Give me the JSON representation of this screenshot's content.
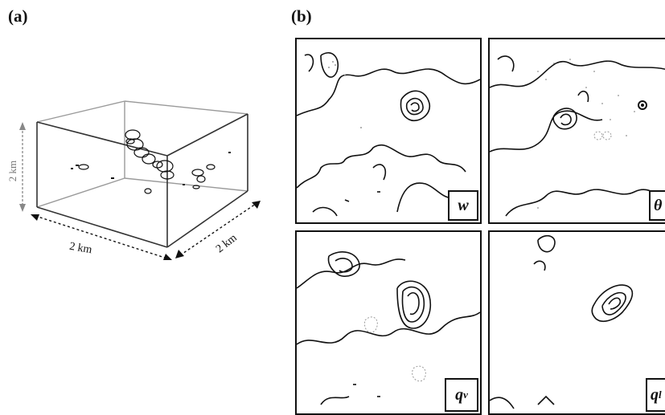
{
  "panel_a": {
    "label": "(a)",
    "height_label": "2 km",
    "front_width_label": "2 km",
    "depth_label": "2 km"
  },
  "panel_b": {
    "label": "(b)",
    "subpanels": [
      {
        "id": "w",
        "var": "w",
        "sub": ""
      },
      {
        "id": "theta",
        "var": "θ",
        "sub": ""
      },
      {
        "id": "qv",
        "var": "q",
        "sub": "v"
      },
      {
        "id": "ql",
        "var": "q",
        "sub": "l"
      }
    ]
  }
}
